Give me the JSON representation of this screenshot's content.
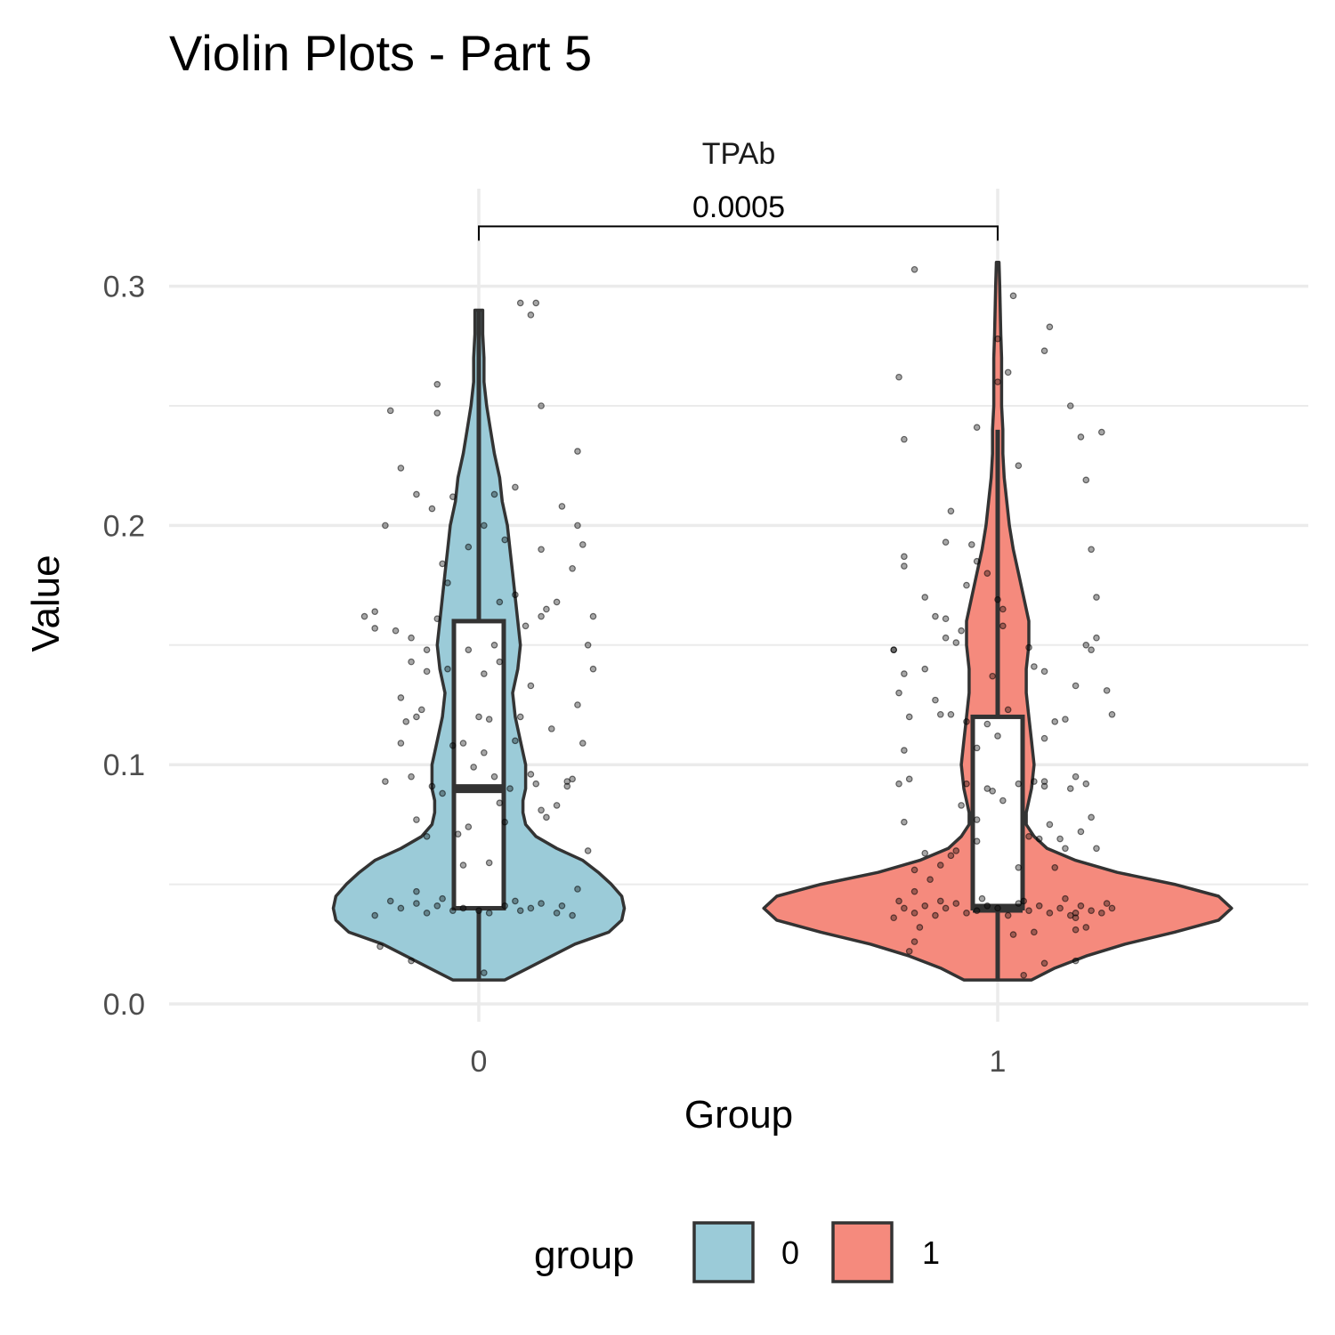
{
  "chart_data": {
    "type": "violin",
    "title": "Violin Plots - Part 5",
    "facet_label": "TPAb",
    "xlabel": "Group",
    "ylabel": "Value",
    "categories": [
      "0",
      "1"
    ],
    "yticks": [
      "0.0",
      "0.1",
      "0.2",
      "0.3"
    ],
    "ylim": [
      -0.006,
      0.335
    ],
    "grid": true,
    "legend": {
      "title": "group",
      "placement": "bottom",
      "entries": [
        {
          "label": "0",
          "color": "#9BCBD8"
        },
        {
          "label": "1",
          "color": "#F58A7D"
        }
      ]
    },
    "comparison": {
      "from": "0",
      "to": "1",
      "label": "0.0005",
      "y": 0.325
    },
    "series": [
      {
        "group": "0",
        "color": "#9BCBD8",
        "box": {
          "q1": 0.04,
          "median": 0.09,
          "q3": 0.16,
          "whisker_low": 0.01,
          "whisker_high": 0.29
        },
        "violin": {
          "y": [
            0.01,
            0.015,
            0.02,
            0.025,
            0.03,
            0.035,
            0.04,
            0.045,
            0.05,
            0.055,
            0.06,
            0.065,
            0.07,
            0.075,
            0.08,
            0.085,
            0.09,
            0.1,
            0.11,
            0.12,
            0.13,
            0.14,
            0.15,
            0.16,
            0.17,
            0.18,
            0.19,
            0.2,
            0.21,
            0.22,
            0.23,
            0.24,
            0.25,
            0.26,
            0.27,
            0.28,
            0.29
          ],
          "width": [
            0.1,
            0.19,
            0.28,
            0.37,
            0.5,
            0.55,
            0.56,
            0.55,
            0.51,
            0.46,
            0.4,
            0.3,
            0.22,
            0.18,
            0.17,
            0.17,
            0.18,
            0.18,
            0.16,
            0.14,
            0.13,
            0.15,
            0.16,
            0.15,
            0.14,
            0.13,
            0.12,
            0.11,
            0.09,
            0.08,
            0.06,
            0.045,
            0.03,
            0.02,
            0.02,
            0.015,
            0.015
          ]
        },
        "points": [
          [
            -0.2,
            0.037
          ],
          [
            -0.15,
            0.04
          ],
          [
            -0.12,
            0.042
          ],
          [
            -0.1,
            0.038
          ],
          [
            -0.08,
            0.041
          ],
          [
            -0.05,
            0.039
          ],
          [
            -0.03,
            0.04
          ],
          [
            0.02,
            0.038
          ],
          [
            0.05,
            0.041
          ],
          [
            0.08,
            0.039
          ],
          [
            0.1,
            0.04
          ],
          [
            0.12,
            0.042
          ],
          [
            0.15,
            0.038
          ],
          [
            0.18,
            0.037
          ],
          [
            -0.17,
            0.043
          ],
          [
            -0.07,
            0.044
          ],
          [
            0.07,
            0.043
          ],
          [
            0.16,
            0.041
          ],
          [
            -0.12,
            0.047
          ],
          [
            0.0,
            0.039
          ],
          [
            -0.19,
            0.024
          ],
          [
            -0.13,
            0.018
          ],
          [
            0.01,
            0.013
          ],
          [
            -0.22,
            0.162
          ],
          [
            -0.2,
            0.157
          ],
          [
            -0.16,
            0.156
          ],
          [
            -0.13,
            0.153
          ],
          [
            -0.14,
            0.118
          ],
          [
            -0.13,
            0.143
          ],
          [
            -0.15,
            0.128
          ],
          [
            -0.12,
            0.12
          ],
          [
            -0.15,
            0.109
          ],
          [
            -0.18,
            0.093
          ],
          [
            -0.13,
            0.095
          ],
          [
            -0.09,
            0.091
          ],
          [
            -0.12,
            0.077
          ],
          [
            -0.1,
            0.07
          ],
          [
            -0.04,
            0.071
          ],
          [
            -0.07,
            0.088
          ],
          [
            -0.1,
            0.139
          ],
          [
            -0.08,
            0.161
          ],
          [
            -0.07,
            0.184
          ],
          [
            -0.06,
            0.176
          ],
          [
            -0.09,
            0.207
          ],
          [
            -0.05,
            0.212
          ],
          [
            -0.12,
            0.213
          ],
          [
            -0.15,
            0.224
          ],
          [
            -0.17,
            0.248
          ],
          [
            -0.08,
            0.259
          ],
          [
            -0.08,
            0.247
          ],
          [
            -0.02,
            0.191
          ],
          [
            0.01,
            0.2
          ],
          [
            0.03,
            0.213
          ],
          [
            0.05,
            0.194
          ],
          [
            0.07,
            0.216
          ],
          [
            0.12,
            0.19
          ],
          [
            0.16,
            0.208
          ],
          [
            0.19,
            0.2
          ],
          [
            0.18,
            0.182
          ],
          [
            0.12,
            0.162
          ],
          [
            0.07,
            0.171
          ],
          [
            0.09,
            0.158
          ],
          [
            0.04,
            0.143
          ],
          [
            0.01,
            0.138
          ],
          [
            0.02,
            0.119
          ],
          [
            0.0,
            0.12
          ],
          [
            -0.03,
            0.109
          ],
          [
            0.01,
            0.105
          ],
          [
            0.03,
            0.095
          ],
          [
            0.06,
            0.09
          ],
          [
            0.1,
            0.096
          ],
          [
            0.11,
            0.092
          ],
          [
            0.12,
            0.081
          ],
          [
            0.13,
            0.078
          ],
          [
            0.15,
            0.083
          ],
          [
            0.17,
            0.091
          ],
          [
            0.18,
            0.094
          ],
          [
            0.14,
            0.115
          ],
          [
            0.2,
            0.109
          ],
          [
            0.19,
            0.125
          ],
          [
            0.22,
            0.14
          ],
          [
            0.21,
            0.15
          ],
          [
            0.22,
            0.162
          ],
          [
            0.05,
            0.076
          ],
          [
            -0.02,
            0.074
          ],
          [
            0.04,
            0.084
          ],
          [
            0.02,
            0.059
          ],
          [
            -0.03,
            0.058
          ],
          [
            0.17,
            0.093
          ],
          [
            0.19,
            0.048
          ],
          [
            0.21,
            0.064
          ],
          [
            0.08,
            0.293
          ],
          [
            0.11,
            0.293
          ],
          [
            0.1,
            0.288
          ],
          [
            0.12,
            0.25
          ],
          [
            0.19,
            0.231
          ],
          [
            0.2,
            0.192
          ],
          [
            -0.18,
            0.2
          ],
          [
            -0.2,
            0.164
          ],
          [
            -0.06,
            0.14
          ],
          [
            -0.1,
            0.148
          ],
          [
            0.03,
            0.15
          ],
          [
            -0.02,
            0.148
          ],
          [
            0.1,
            0.133
          ],
          [
            0.08,
            0.12
          ],
          [
            0.13,
            0.165
          ],
          [
            0.15,
            0.168
          ],
          [
            0.04,
            0.168
          ],
          [
            0.07,
            0.11
          ],
          [
            -0.05,
            0.108
          ],
          [
            -0.01,
            0.099
          ],
          [
            -0.11,
            0.123
          ]
        ]
      },
      {
        "group": "1",
        "color": "#F58A7D",
        "box": {
          "q1": 0.04,
          "median": 0.04,
          "q3": 0.12,
          "whisker_low": 0.01,
          "whisker_high": 0.24
        },
        "violin": {
          "y": [
            0.01,
            0.015,
            0.02,
            0.025,
            0.03,
            0.035,
            0.04,
            0.045,
            0.05,
            0.055,
            0.06,
            0.065,
            0.07,
            0.075,
            0.08,
            0.09,
            0.1,
            0.11,
            0.12,
            0.13,
            0.14,
            0.15,
            0.16,
            0.17,
            0.18,
            0.19,
            0.2,
            0.21,
            0.22,
            0.23,
            0.24,
            0.25,
            0.26,
            0.27,
            0.28,
            0.29,
            0.3,
            0.31
          ],
          "width": [
            0.13,
            0.22,
            0.34,
            0.49,
            0.68,
            0.85,
            0.9,
            0.85,
            0.68,
            0.46,
            0.3,
            0.19,
            0.14,
            0.11,
            0.11,
            0.13,
            0.14,
            0.13,
            0.12,
            0.11,
            0.11,
            0.12,
            0.12,
            0.1,
            0.08,
            0.06,
            0.045,
            0.035,
            0.025,
            0.02,
            0.02,
            0.015,
            0.015,
            0.015,
            0.012,
            0.01,
            0.008,
            0.005
          ]
        },
        "points": [
          [
            -0.2,
            0.036
          ],
          [
            -0.18,
            0.04
          ],
          [
            -0.16,
            0.038
          ],
          [
            -0.14,
            0.041
          ],
          [
            -0.12,
            0.037
          ],
          [
            -0.1,
            0.04
          ],
          [
            -0.08,
            0.042
          ],
          [
            -0.06,
            0.038
          ],
          [
            -0.04,
            0.039
          ],
          [
            -0.02,
            0.041
          ],
          [
            0.0,
            0.04
          ],
          [
            0.02,
            0.037
          ],
          [
            0.04,
            0.042
          ],
          [
            0.06,
            0.039
          ],
          [
            0.08,
            0.041
          ],
          [
            0.1,
            0.038
          ],
          [
            0.12,
            0.04
          ],
          [
            0.14,
            0.037
          ],
          [
            0.16,
            0.041
          ],
          [
            0.18,
            0.039
          ],
          [
            0.2,
            0.038
          ],
          [
            0.22,
            0.04
          ],
          [
            -0.19,
            0.043
          ],
          [
            -0.11,
            0.043
          ],
          [
            -0.03,
            0.044
          ],
          [
            0.05,
            0.043
          ],
          [
            0.13,
            0.044
          ],
          [
            0.21,
            0.042
          ],
          [
            -0.17,
            0.022
          ],
          [
            -0.16,
            0.026
          ],
          [
            -0.15,
            0.032
          ],
          [
            0.05,
            0.012
          ],
          [
            0.09,
            0.017
          ],
          [
            0.15,
            0.018
          ],
          [
            0.15,
            0.031
          ],
          [
            0.15,
            0.036
          ],
          [
            0.17,
            0.032
          ],
          [
            0.07,
            0.03
          ],
          [
            0.03,
            0.029
          ],
          [
            0.15,
            0.038
          ],
          [
            -0.16,
            0.047
          ],
          [
            -0.13,
            0.052
          ],
          [
            -0.16,
            0.056
          ],
          [
            -0.14,
            0.063
          ],
          [
            -0.11,
            0.058
          ],
          [
            -0.09,
            0.062
          ],
          [
            0.04,
            0.057
          ],
          [
            0.11,
            0.057
          ],
          [
            0.08,
            0.069
          ],
          [
            0.06,
            0.07
          ],
          [
            -0.08,
            0.064
          ],
          [
            -0.04,
            0.068
          ],
          [
            -0.01,
            0.089
          ],
          [
            -0.06,
            0.092
          ],
          [
            -0.02,
            0.09
          ],
          [
            -0.04,
            0.077
          ],
          [
            -0.07,
            0.083
          ],
          [
            0.01,
            0.085
          ],
          [
            0.04,
            0.092
          ],
          [
            0.07,
            0.093
          ],
          [
            0.09,
            0.093
          ],
          [
            0.1,
            0.075
          ],
          [
            0.12,
            0.069
          ],
          [
            0.13,
            0.065
          ],
          [
            0.14,
            0.09
          ],
          [
            0.15,
            0.095
          ],
          [
            0.17,
            0.092
          ],
          [
            0.18,
            0.078
          ],
          [
            0.19,
            0.065
          ],
          [
            -0.18,
            0.076
          ],
          [
            -0.19,
            0.092
          ],
          [
            -0.17,
            0.094
          ],
          [
            -0.18,
            0.106
          ],
          [
            -0.17,
            0.12
          ],
          [
            -0.19,
            0.13
          ],
          [
            -0.18,
            0.138
          ],
          [
            -0.2,
            0.148
          ],
          [
            -0.2,
            0.148
          ],
          [
            -0.14,
            0.14
          ],
          [
            -0.12,
            0.127
          ],
          [
            -0.11,
            0.121
          ],
          [
            -0.09,
            0.121
          ],
          [
            -0.06,
            0.118
          ],
          [
            -0.04,
            0.107
          ],
          [
            -0.02,
            0.117
          ],
          [
            0.0,
            0.112
          ],
          [
            0.02,
            0.123
          ],
          [
            0.06,
            0.149
          ],
          [
            0.07,
            0.141
          ],
          [
            0.09,
            0.139
          ],
          [
            0.11,
            0.118
          ],
          [
            0.13,
            0.119
          ],
          [
            0.15,
            0.133
          ],
          [
            0.17,
            0.15
          ],
          [
            0.19,
            0.153
          ],
          [
            0.19,
            0.17
          ],
          [
            0.18,
            0.148
          ],
          [
            0.21,
            0.131
          ],
          [
            0.22,
            0.121
          ],
          [
            -0.14,
            0.17
          ],
          [
            -0.12,
            0.162
          ],
          [
            -0.1,
            0.153
          ],
          [
            -0.06,
            0.175
          ],
          [
            -0.04,
            0.185
          ],
          [
            -0.02,
            0.18
          ],
          [
            0.0,
            0.169
          ],
          [
            -0.05,
            0.192
          ],
          [
            -0.1,
            0.193
          ],
          [
            -0.09,
            0.206
          ],
          [
            -0.04,
            0.241
          ],
          [
            0.0,
            0.26
          ],
          [
            0.02,
            0.264
          ],
          [
            0.04,
            0.225
          ],
          [
            0.09,
            0.273
          ],
          [
            0.1,
            0.283
          ],
          [
            0.14,
            0.25
          ],
          [
            0.16,
            0.237
          ],
          [
            0.17,
            0.219
          ],
          [
            0.18,
            0.19
          ],
          [
            0.2,
            0.239
          ],
          [
            -0.19,
            0.262
          ],
          [
            -0.18,
            0.236
          ],
          [
            -0.16,
            0.307
          ],
          [
            0.03,
            0.296
          ],
          [
            0.0,
            0.278
          ],
          [
            -0.18,
            0.187
          ],
          [
            -0.18,
            0.183
          ],
          [
            -0.1,
            0.161
          ],
          [
            -0.01,
            0.137
          ],
          [
            0.01,
            0.165
          ],
          [
            -0.07,
            0.156
          ],
          [
            0.09,
            0.091
          ],
          [
            0.16,
            0.072
          ],
          [
            -0.08,
            0.151
          ],
          [
            0.09,
            0.111
          ],
          [
            0.01,
            0.158
          ]
        ]
      }
    ]
  }
}
